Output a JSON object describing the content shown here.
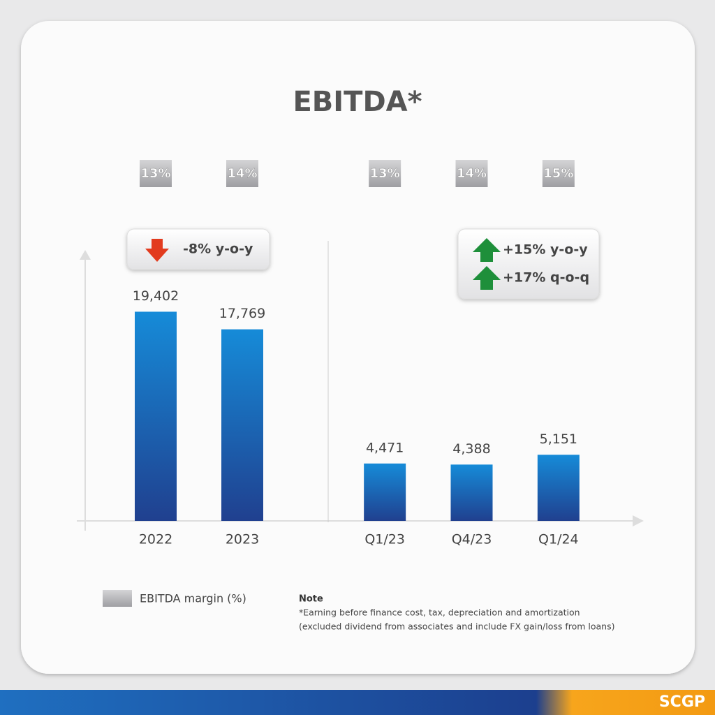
{
  "title": "EBITDA*",
  "legend_label": "EBITDA margin (%)",
  "note": {
    "heading": "Note",
    "lines": [
      "*Earning before finance cost, tax, depreciation and amortization",
      "(excluded dividend from associates and include FX gain/loss from loans)"
    ]
  },
  "brand": "SCGP",
  "chart_data": [
    {
      "type": "bar",
      "categories": [
        "2022",
        "2023"
      ],
      "values": [
        19402,
        17769
      ],
      "value_labels": [
        "19,402",
        "17,769"
      ],
      "margin_values": [
        13,
        14
      ],
      "margin_labels": [
        "13%",
        "14%"
      ],
      "annotations": [
        "-8% y-o-y"
      ],
      "color": "#1a7fd0",
      "ylim": [
        0,
        25000
      ]
    },
    {
      "type": "bar",
      "categories": [
        "Q1/23",
        "Q4/23",
        "Q1/24"
      ],
      "values": [
        4471,
        4388,
        5151
      ],
      "value_labels": [
        "4,471",
        "4,388",
        "5,151"
      ],
      "margin_values": [
        13,
        14,
        15
      ],
      "margin_labels": [
        "13%",
        "14%",
        "15%"
      ],
      "annotations": [
        "+15% y-o-y",
        "+17% q-o-q"
      ],
      "color": "#1a7fd0",
      "ylim": [
        0,
        21000
      ]
    }
  ]
}
